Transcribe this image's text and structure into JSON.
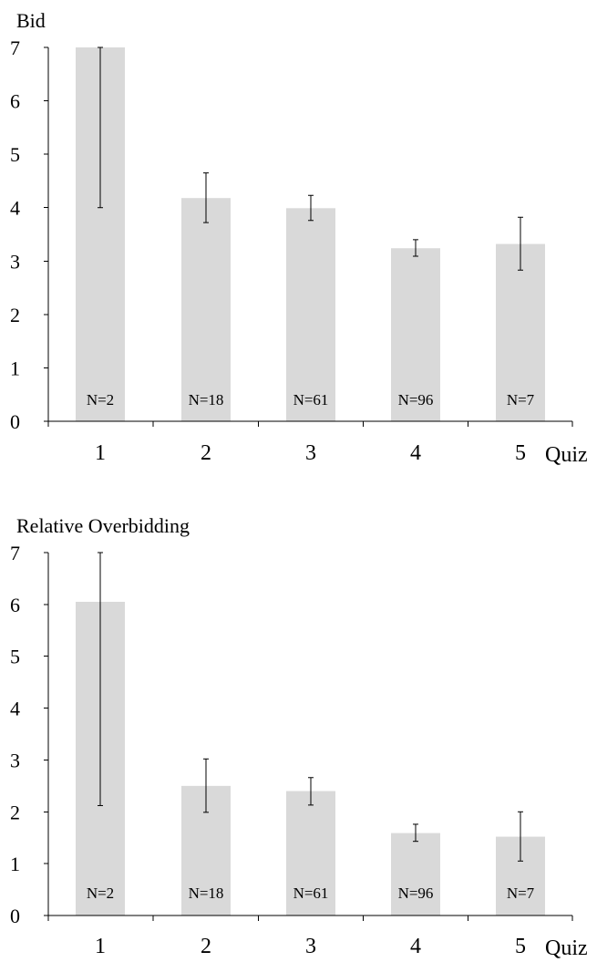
{
  "chart_data": [
    {
      "type": "bar",
      "title": "",
      "ylabel": "Bid",
      "xlabel": "Quiz",
      "categories": [
        "1",
        "2",
        "3",
        "4",
        "5"
      ],
      "values": [
        7.0,
        4.18,
        3.99,
        3.24,
        3.32
      ],
      "error_low": [
        4.0,
        3.72,
        3.76,
        3.09,
        2.83
      ],
      "error_high": [
        7.0,
        4.65,
        4.23,
        3.4,
        3.82
      ],
      "bar_labels": [
        "N=2",
        "N=18",
        "N=61",
        "N=96",
        "N=7"
      ],
      "ylim": [
        0,
        7
      ],
      "yticks": [
        "0",
        "1",
        "2",
        "3",
        "4",
        "5",
        "6",
        "7"
      ],
      "bar_color": "#d9d9d9",
      "grid": false,
      "legend": "none"
    },
    {
      "type": "bar",
      "title": "",
      "ylabel": "Relative Overbidding",
      "xlabel": "Quiz",
      "categories": [
        "1",
        "2",
        "3",
        "4",
        "5"
      ],
      "values": [
        6.05,
        2.5,
        2.4,
        1.59,
        1.52
      ],
      "error_low": [
        2.12,
        1.99,
        2.13,
        1.43,
        1.05
      ],
      "error_high": [
        7.0,
        3.02,
        2.66,
        1.76,
        2.0
      ],
      "bar_labels": [
        "N=2",
        "N=18",
        "N=61",
        "N=96",
        "N=7"
      ],
      "ylim": [
        0,
        7
      ],
      "yticks": [
        "0",
        "1",
        "2",
        "3",
        "4",
        "5",
        "6",
        "7"
      ],
      "bar_color": "#d9d9d9",
      "grid": false,
      "legend": "none"
    }
  ]
}
